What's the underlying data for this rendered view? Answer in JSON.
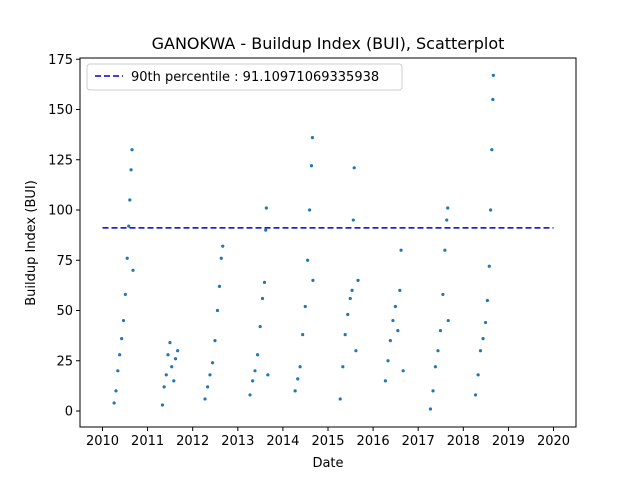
{
  "chart_data": {
    "type": "scatter",
    "title": "GANOKWA - Buildup Index (BUI), Scatterplot",
    "xlabel": "Date",
    "ylabel": "Buildup Index (BUI)",
    "xlim": [
      "2010-01-01",
      "2020-01-01"
    ],
    "ylim": [
      0,
      175
    ],
    "x_ticks": [
      "2010",
      "2011",
      "2012",
      "2013",
      "2014",
      "2015",
      "2016",
      "2017",
      "2018",
      "2019",
      "2020"
    ],
    "y_ticks": [
      0,
      25,
      50,
      75,
      100,
      125,
      150,
      175
    ],
    "grid": false,
    "legend_position": "top-left",
    "colors": {
      "points": "#1f77b4",
      "reference_line": "#0000cc"
    },
    "reference_line": {
      "label": "90th percentile : 91.10971069335938",
      "value": 91.10971069335938,
      "style": "dashed"
    },
    "series": [
      {
        "points": [
          [
            "2010-04-05",
            4
          ],
          [
            "2010-04-20",
            10
          ],
          [
            "2010-05-05",
            20
          ],
          [
            "2010-05-20",
            28
          ],
          [
            "2010-06-05",
            36
          ],
          [
            "2010-06-20",
            45
          ],
          [
            "2010-07-05",
            58
          ],
          [
            "2010-07-20",
            76
          ],
          [
            "2010-08-01",
            92
          ],
          [
            "2010-08-10",
            105
          ],
          [
            "2010-08-20",
            120
          ],
          [
            "2010-08-28",
            130
          ],
          [
            "2010-09-05",
            70
          ],
          [
            "2011-05-01",
            3
          ],
          [
            "2011-05-15",
            12
          ],
          [
            "2011-06-01",
            18
          ],
          [
            "2011-06-15",
            28
          ],
          [
            "2011-07-01",
            34
          ],
          [
            "2011-07-15",
            22
          ],
          [
            "2011-08-01",
            15
          ],
          [
            "2011-08-15",
            26
          ],
          [
            "2011-09-01",
            30
          ],
          [
            "2012-04-10",
            6
          ],
          [
            "2012-05-01",
            12
          ],
          [
            "2012-05-20",
            18
          ],
          [
            "2012-06-10",
            24
          ],
          [
            "2012-06-30",
            35
          ],
          [
            "2012-07-20",
            50
          ],
          [
            "2012-08-05",
            62
          ],
          [
            "2012-08-20",
            76
          ],
          [
            "2012-09-01",
            82
          ],
          [
            "2013-04-10",
            8
          ],
          [
            "2013-05-01",
            15
          ],
          [
            "2013-05-20",
            20
          ],
          [
            "2013-06-10",
            28
          ],
          [
            "2013-07-01",
            42
          ],
          [
            "2013-07-20",
            56
          ],
          [
            "2013-08-05",
            64
          ],
          [
            "2013-08-15",
            90
          ],
          [
            "2013-08-20",
            101
          ],
          [
            "2013-09-01",
            18
          ],
          [
            "2014-04-10",
            10
          ],
          [
            "2014-05-01",
            16
          ],
          [
            "2014-05-20",
            22
          ],
          [
            "2014-06-10",
            38
          ],
          [
            "2014-07-01",
            52
          ],
          [
            "2014-07-20",
            75
          ],
          [
            "2014-08-05",
            100
          ],
          [
            "2014-08-20",
            122
          ],
          [
            "2014-08-28",
            136
          ],
          [
            "2014-09-01",
            65
          ],
          [
            "2015-04-10",
            6
          ],
          [
            "2015-05-01",
            22
          ],
          [
            "2015-05-20",
            38
          ],
          [
            "2015-06-10",
            48
          ],
          [
            "2015-06-30",
            56
          ],
          [
            "2015-07-15",
            60
          ],
          [
            "2015-07-25",
            95
          ],
          [
            "2015-08-01",
            121
          ],
          [
            "2015-08-15",
            30
          ],
          [
            "2015-09-01",
            65
          ],
          [
            "2016-04-10",
            15
          ],
          [
            "2016-05-01",
            25
          ],
          [
            "2016-05-20",
            35
          ],
          [
            "2016-06-10",
            45
          ],
          [
            "2016-06-30",
            52
          ],
          [
            "2016-07-20",
            40
          ],
          [
            "2016-08-05",
            60
          ],
          [
            "2016-08-15",
            80
          ],
          [
            "2016-09-01",
            20
          ],
          [
            "2017-04-10",
            1
          ],
          [
            "2017-05-01",
            10
          ],
          [
            "2017-05-20",
            22
          ],
          [
            "2017-06-10",
            30
          ],
          [
            "2017-06-30",
            40
          ],
          [
            "2017-07-20",
            58
          ],
          [
            "2017-08-05",
            80
          ],
          [
            "2017-08-20",
            95
          ],
          [
            "2017-08-28",
            101
          ],
          [
            "2017-09-01",
            45
          ],
          [
            "2018-04-10",
            8
          ],
          [
            "2018-05-01",
            18
          ],
          [
            "2018-05-20",
            30
          ],
          [
            "2018-06-10",
            36
          ],
          [
            "2018-06-30",
            44
          ],
          [
            "2018-07-15",
            55
          ],
          [
            "2018-07-30",
            72
          ],
          [
            "2018-08-10",
            100
          ],
          [
            "2018-08-20",
            130
          ],
          [
            "2018-08-28",
            155
          ],
          [
            "2018-09-01",
            167
          ]
        ]
      }
    ]
  }
}
